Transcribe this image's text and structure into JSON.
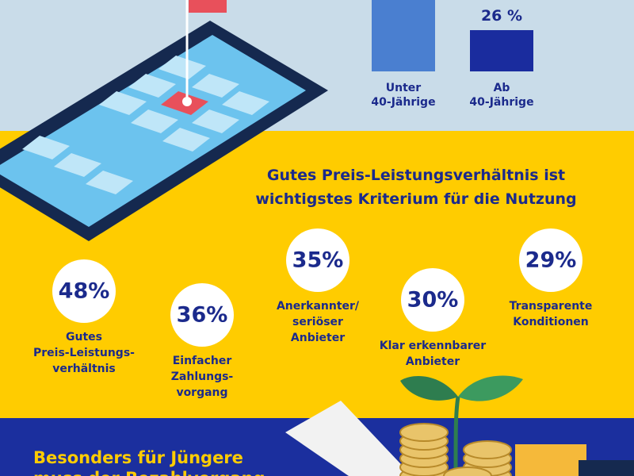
{
  "top": {
    "bars": [
      {
        "label": [
          "Unter",
          "40-Jährige"
        ]
      },
      {
        "value_label": "26 %",
        "label": [
          "Ab",
          "40-Jährige"
        ]
      }
    ]
  },
  "criteria": {
    "title": [
      "Gutes Preis-Leistungsverhältnis ist",
      "wichtigstes Kriterium für die Nutzung"
    ],
    "items": [
      {
        "percent": "48%",
        "label": [
          "Gutes",
          "Preis-Leistungs-",
          "verhältnis"
        ]
      },
      {
        "percent": "36%",
        "label": [
          "Einfacher",
          "Zahlungs-",
          "vorgang"
        ]
      },
      {
        "percent": "35%",
        "label": [
          "Anerkannter/",
          "seriöser",
          "Anbieter"
        ]
      },
      {
        "percent": "30%",
        "label": [
          "Klar erkennbarer",
          "Anbieter"
        ]
      },
      {
        "percent": "29%",
        "label": [
          "Transparente",
          "Konditionen"
        ]
      }
    ]
  },
  "bottom": {
    "title": [
      "Besonders für Jüngere",
      "muss der Bezahlvorgang"
    ]
  }
}
